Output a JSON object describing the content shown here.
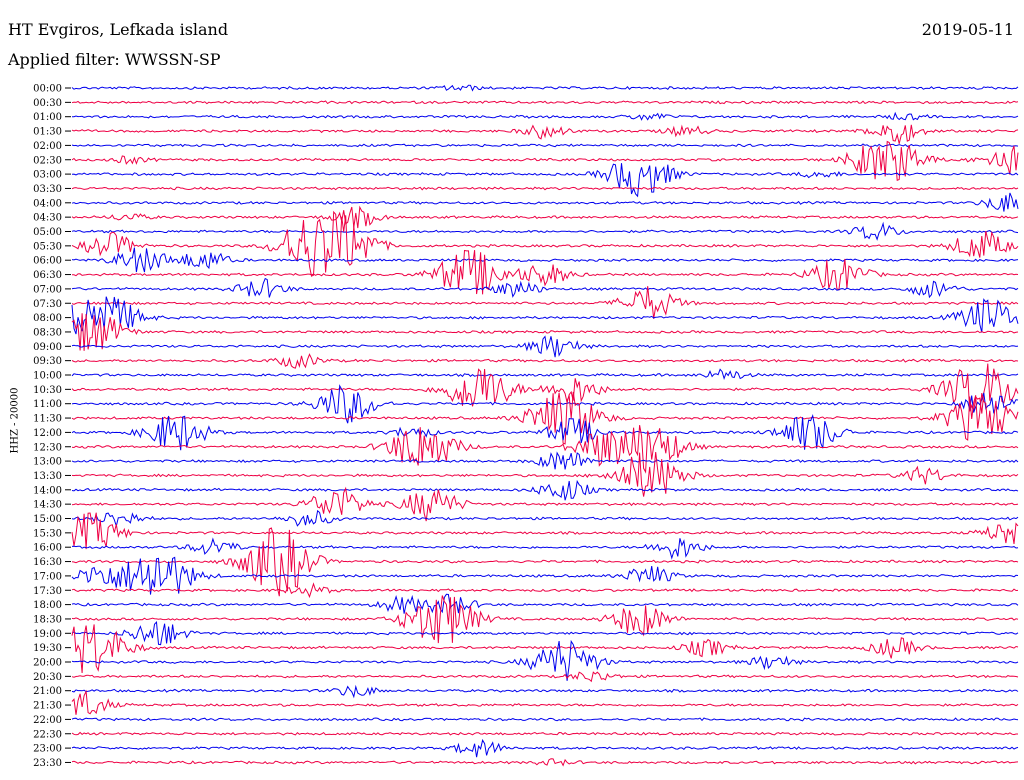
{
  "header": {
    "station": "HT Evgiros, Lefkada island",
    "date": "2019-05-11",
    "filter": "Applied filter: WWSSN-SP"
  },
  "chart_data": {
    "type": "line",
    "title": "HT Evgiros, Lefkada island",
    "ylabel": "HHZ - 20000",
    "colors": [
      "#0000ee",
      "#ee0044"
    ],
    "time_labels": [
      "00:00",
      "00:30",
      "01:00",
      "01:30",
      "02:00",
      "02:30",
      "03:00",
      "03:30",
      "04:00",
      "04:30",
      "05:00",
      "05:30",
      "06:00",
      "06:30",
      "07:00",
      "07:30",
      "08:00",
      "08:30",
      "09:00",
      "09:30",
      "10:00",
      "10:30",
      "11:00",
      "11:30",
      "12:00",
      "12:30",
      "13:00",
      "13:30",
      "14:00",
      "14:30",
      "15:00",
      "15:30",
      "16:00",
      "16:30",
      "17:00",
      "17:30",
      "18:00",
      "18:30",
      "19:00",
      "19:30",
      "20:00",
      "20:30",
      "21:00",
      "21:30",
      "22:00",
      "22:30",
      "23:00",
      "23:30"
    ],
    "bursts": [
      [
        0.41,
        0.1
      ],
      [],
      [
        0.61,
        0.12,
        0.88,
        0.1
      ],
      [
        0.5,
        0.25,
        0.65,
        0.18,
        0.87,
        0.45
      ],
      [],
      [
        0.06,
        0.12,
        0.84,
        0.35,
        0.87,
        0.7,
        0.99,
        0.5
      ],
      [
        0.6,
        0.8,
        0.79,
        0.12
      ],
      [],
      [
        0.99,
        0.35
      ],
      [
        0.3,
        0.35,
        0.06,
        0.12
      ],
      [
        0.85,
        0.3
      ],
      [
        0.04,
        0.45,
        0.24,
        0.55,
        0.27,
        1.0,
        0.3,
        0.45,
        0.96,
        0.55
      ],
      [
        0.08,
        0.35,
        0.14,
        0.35,
        0.06,
        0.2
      ],
      [
        0.42,
        0.9,
        0.5,
        0.4,
        0.81,
        0.6
      ],
      [
        0.2,
        0.35,
        0.47,
        0.3,
        0.91,
        0.3
      ],
      [
        0.61,
        0.6
      ],
      [
        0.03,
        1.0,
        0.97,
        0.7
      ],
      [
        0.02,
        0.8
      ],
      [
        0.51,
        0.4
      ],
      [
        0.24,
        0.25
      ],
      [
        0.69,
        0.2
      ],
      [
        0.43,
        0.9,
        0.53,
        0.5,
        0.96,
        1.0
      ],
      [
        0.29,
        0.7,
        0.97,
        0.5
      ],
      [
        0.52,
        1.0,
        0.96,
        0.9
      ],
      [
        0.11,
        0.7,
        0.36,
        0.2,
        0.53,
        0.5,
        0.78,
        0.7
      ],
      [
        0.37,
        0.9,
        0.56,
        0.6,
        0.61,
        0.9
      ],
      [
        0.52,
        0.4
      ],
      [
        0.61,
        0.9,
        0.9,
        0.3
      ],
      [
        0.52,
        0.4
      ],
      [
        0.28,
        0.6,
        0.38,
        0.6
      ],
      [
        0.05,
        0.3,
        0.25,
        0.3
      ],
      [
        0.02,
        0.7,
        0.99,
        0.4
      ],
      [
        0.15,
        0.3,
        0.64,
        0.4
      ],
      [
        0.21,
        0.8,
        0.23,
        0.6
      ],
      [
        0.03,
        0.4,
        0.09,
        1.0,
        0.61,
        0.35
      ],
      [
        0.25,
        0.2
      ],
      [
        0.35,
        0.3,
        0.4,
        0.35
      ],
      [
        0.39,
        1.0,
        0.6,
        0.6
      ],
      [
        0.09,
        0.5
      ],
      [
        0.02,
        1.0,
        0.67,
        0.3,
        0.87,
        0.35
      ],
      [
        0.52,
        0.8,
        0.74,
        0.25
      ],
      [
        0.55,
        0.2
      ],
      [
        0.3,
        0.2
      ],
      [
        0.01,
        0.5
      ],
      [],
      [],
      [
        0.43,
        0.3
      ],
      [
        0.51,
        0.1
      ]
    ]
  }
}
